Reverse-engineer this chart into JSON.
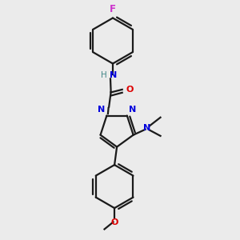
{
  "bg_color": "#ebebeb",
  "bond_color": "#1a1a1a",
  "n_color": "#0000dd",
  "o_color": "#dd0000",
  "f_color": "#cc33cc",
  "h_color": "#448888",
  "line_width": 1.6,
  "font_size": 8.0,
  "fig_size": [
    3.0,
    3.0
  ],
  "dpi": 100,
  "xlim": [
    0,
    10
  ],
  "ylim": [
    0,
    10
  ]
}
